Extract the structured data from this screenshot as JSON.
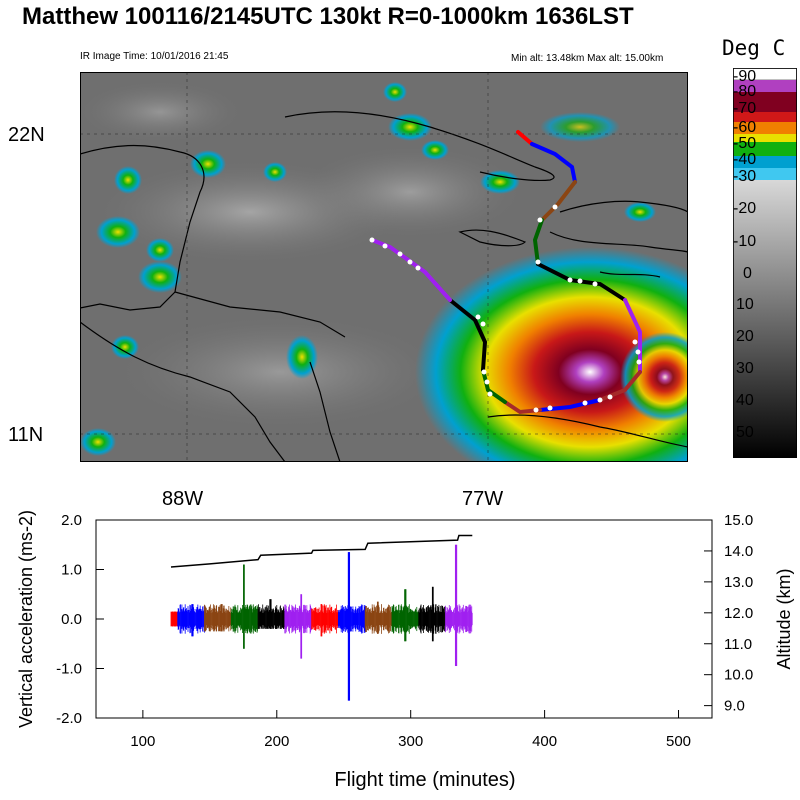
{
  "header": {
    "title": "Matthew 100116/2145UTC 130kt  R=0-1000km 1636LST",
    "ir_time": "IR Image Time: 10/01/2016 21:45",
    "alt_range": "Min alt: 13.48km  Max alt: 15.00km"
  },
  "map": {
    "lat_labels": [
      "22N",
      "11N"
    ],
    "lon_labels": [
      "88W",
      "77W"
    ]
  },
  "colorbar": {
    "title": "Deg C",
    "labels": [
      "-90",
      "-80",
      "-70",
      "-60",
      "-50",
      "-40",
      "-30",
      "-20",
      "-10",
      "0",
      "10",
      "20",
      "30",
      "40",
      "50"
    ],
    "colors": [
      "#ffffff",
      "#b040c0",
      "#800020",
      "#c81818",
      "#f0a000",
      "#00b000",
      "#00a0d0",
      "#d0d0d0",
      "#000000"
    ]
  },
  "chart_data": {
    "type": "line",
    "xlabel": "Flight time (minutes)",
    "ylabel": "Vertical acceleration (ms-2)",
    "y2label": "Altitude (km)",
    "xlim": [
      65,
      525
    ],
    "ylim": [
      -2.0,
      2.0
    ],
    "y2lim": [
      8.6,
      15.0
    ],
    "x_ticks": [
      "100",
      "200",
      "300",
      "400",
      "500"
    ],
    "y_ticks": [
      "2.0",
      "1.0",
      "0.0",
      "-1.0",
      "-2.0"
    ],
    "y2_ticks": [
      "15.0",
      "14.0",
      "13.0",
      "12.0",
      "11.0",
      "10.0",
      "9.0"
    ],
    "altitude_series": {
      "name": "Altitude",
      "x": [
        121,
        150,
        186,
        188,
        226,
        227,
        266,
        268,
        335,
        336,
        346
      ],
      "y": [
        13.48,
        13.58,
        13.72,
        13.86,
        13.93,
        14.02,
        14.05,
        14.25,
        14.35,
        14.5,
        14.5
      ]
    },
    "acceleration_segments": [
      {
        "color": "#ff0000",
        "x": [
          121,
          126
        ],
        "max": 0.15,
        "min": -0.15
      },
      {
        "color": "#0000ff",
        "x": [
          126,
          146
        ],
        "max": 0.3,
        "min": -0.35
      },
      {
        "color": "#8b4513",
        "x": [
          146,
          166
        ],
        "max": 0.3,
        "min": -0.25
      },
      {
        "color": "#006400",
        "x": [
          166,
          186
        ],
        "max": 1.1,
        "min": -0.6
      },
      {
        "color": "#000000",
        "x": [
          186,
          206
        ],
        "max": 0.4,
        "min": -0.2
      },
      {
        "color": "#a020f0",
        "x": [
          206,
          226
        ],
        "max": 0.5,
        "min": -0.8
      },
      {
        "color": "#ff0000",
        "x": [
          226,
          246
        ],
        "max": 0.3,
        "min": -0.35
      },
      {
        "color": "#0000ff",
        "x": [
          246,
          266
        ],
        "max": 1.35,
        "min": -1.65
      },
      {
        "color": "#8b4513",
        "x": [
          266,
          286
        ],
        "max": 0.35,
        "min": -0.3
      },
      {
        "color": "#006400",
        "x": [
          286,
          306
        ],
        "max": 0.6,
        "min": -0.45
      },
      {
        "color": "#000000",
        "x": [
          306,
          326
        ],
        "max": 0.65,
        "min": -0.45
      },
      {
        "color": "#a020f0",
        "x": [
          326,
          346
        ],
        "max": 1.5,
        "min": -0.95
      }
    ]
  }
}
